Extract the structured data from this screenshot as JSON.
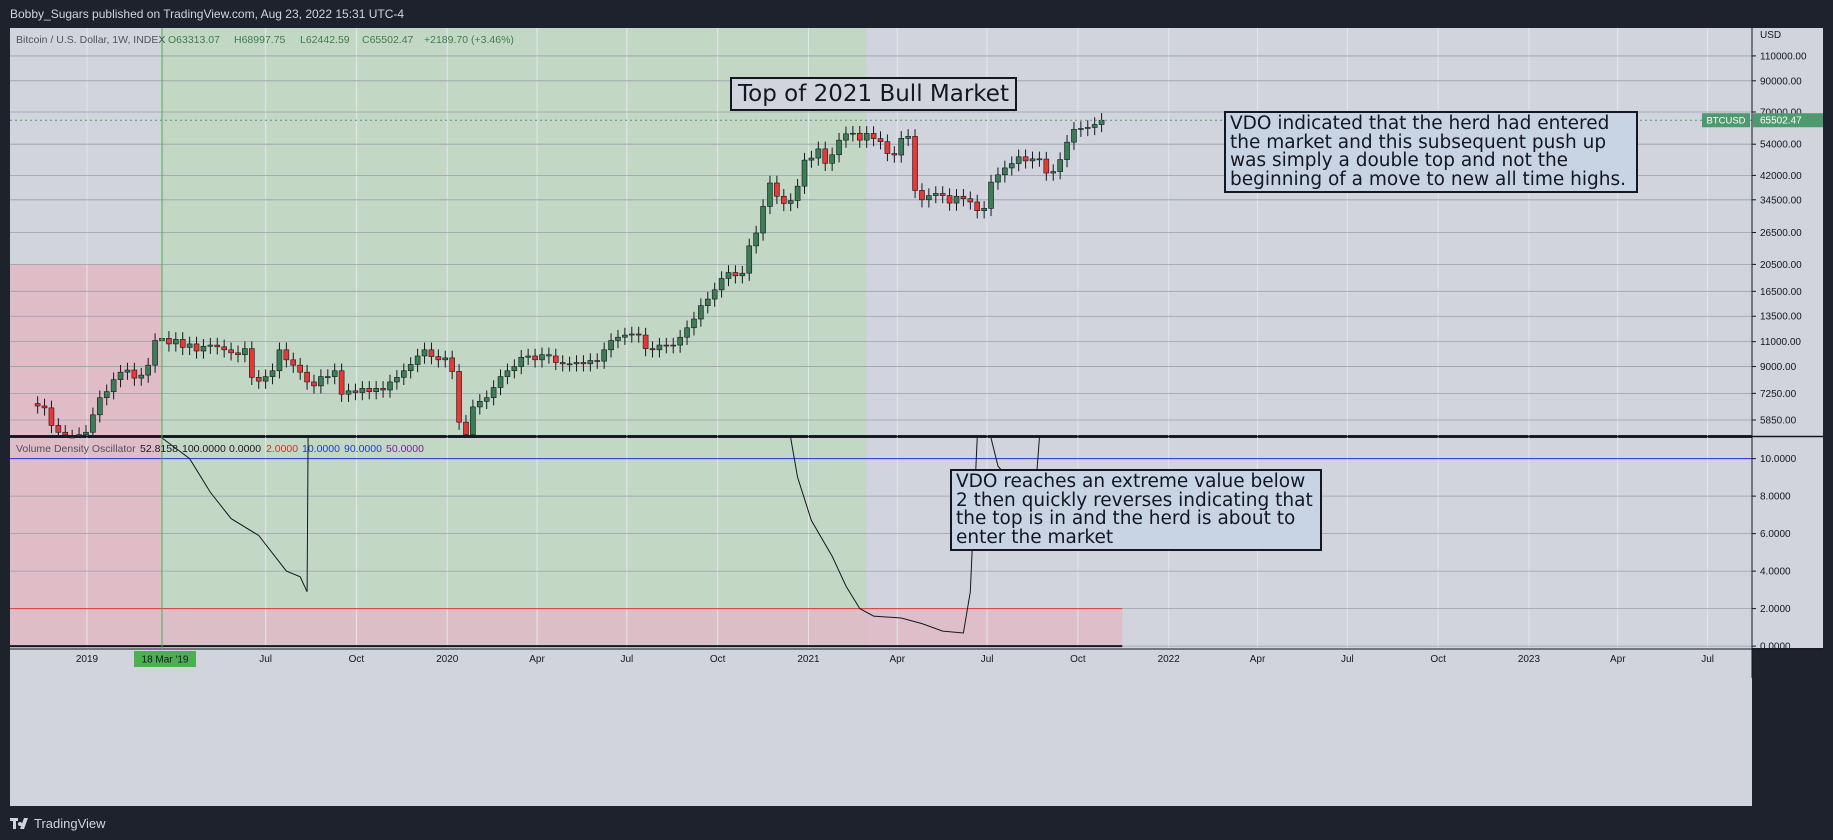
{
  "header": {
    "publisher_line": "Bobby_Sugars published on TradingView.com, Aug 23, 2022 15:31 UTC-4"
  },
  "footer": {
    "brand": "TradingView"
  },
  "colors": {
    "up": "#3d7d53",
    "down": "#e53935",
    "oscillator_line": "#131722",
    "threshold_line": "#1e3ad8",
    "green_zone": "#c3d8c4",
    "red_zone": "#dfbcc6",
    "price_tag": "#4e9a6e",
    "date_tag": "#4caf50"
  },
  "legend": {
    "symbol": "Bitcoin / U.S. Dollar, 1W, INDEX",
    "o": "O63313.07",
    "h": "H68997.75",
    "l": "L62442.59",
    "c": "C65502.47",
    "chg": "+2189.70 (+3.46%)"
  },
  "indicator": {
    "name": "Volume Density Oscillator",
    "values": [
      "52.8158",
      "100.0000",
      "0.0000",
      "2.0000",
      "10.0000",
      "90.0000",
      "50.0000"
    ],
    "value_colors": [
      "#131722",
      "#131722",
      "#131722",
      "#d32f2f",
      "#1e3ad8",
      "#1e3ad8",
      "#7b1fa2"
    ]
  },
  "annotations": {
    "top_title": "Top of 2021 Bull Market",
    "note_price": "VDO indicated that the herd had entered the market and this subsequent push up was simply a double top and not the beginning of a move to new all time highs.",
    "note_osc": "VDO reaches an extreme value below 2 then quickly reverses indicating that the top is in and the herd is about to enter the market"
  },
  "chart_data": [
    {
      "type": "candlestick",
      "pane": "price",
      "title": "Bitcoin / U.S. Dollar, 1W, INDEX",
      "scale": "log",
      "last_price_label": "BTCUSD",
      "last_price": 65502.47,
      "last_price_text": "65502.47",
      "y_ticks": [
        5850,
        7250,
        9000,
        11000,
        13500,
        16500,
        20500,
        26500,
        34500,
        42000,
        54000,
        70000,
        90000,
        110000
      ],
      "y_tick_labels": [
        "5850.00",
        "7250.00",
        "9000.00",
        "11000.00",
        "13500.00",
        "16500.00",
        "20500.00",
        "26500.00",
        "34500.00",
        "42000.00",
        "54000.00",
        "70000.00",
        "90000.00",
        "110000.00"
      ],
      "y_unit": "USD",
      "x_ticks": [
        "2019",
        "Jul",
        "Oct",
        "2020",
        "Apr",
        "Jul",
        "Oct",
        "2021",
        "Apr",
        "Jul",
        "Oct",
        "2022",
        "Apr",
        "Jul",
        "Oct",
        "2023",
        "Apr",
        "Jul"
      ],
      "x_tick_dates": [
        "2019-01-01",
        "2019-07-01",
        "2019-10-01",
        "2020-01-01",
        "2020-04-01",
        "2020-07-01",
        "2020-10-01",
        "2021-01-01",
        "2021-04-01",
        "2021-07-01",
        "2021-10-01",
        "2022-01-01",
        "2022-04-01",
        "2022-07-01",
        "2022-10-01",
        "2023-01-01",
        "2023-04-01",
        "2023-07-01"
      ],
      "x_range": [
        "2018-10-15",
        "2023-08-15"
      ],
      "crosshair_date_label": "18 Mar '19",
      "crosshair_date": "2019-03-18",
      "shaded_regions": [
        {
          "color": "red",
          "from": "2018-10-15",
          "to": "2019-03-18",
          "y_top": 20500
        },
        {
          "color": "green",
          "from": "2019-03-18",
          "to": "2021-03-01"
        }
      ],
      "closes": [
        6550,
        6450,
        5600,
        5300,
        5100,
        5050,
        5200,
        5300,
        6100,
        7000,
        7350,
        8100,
        8600,
        8750,
        8200,
        8400,
        9100,
        11100,
        11300,
        10800,
        11200,
        10500,
        10800,
        10200,
        10600,
        10700,
        10550,
        10300,
        10050,
        9900,
        10400,
        8250,
        8000,
        8300,
        8700,
        10300,
        9500,
        9100,
        8600,
        7950,
        7700,
        8300,
        8300,
        8700,
        7200,
        7400,
        7300,
        7550,
        7350,
        7550,
        7450,
        7950,
        8250,
        8700,
        9150,
        9800,
        10300,
        9750,
        9500,
        9650,
        8650,
        5750,
        5200,
        6500,
        6800,
        7000,
        7600,
        8300,
        8700,
        9000,
        9700,
        9800,
        9500,
        9900,
        9800,
        9300,
        9200,
        9200,
        9300,
        9200,
        9450,
        9400,
        10300,
        11100,
        11400,
        11600,
        11700,
        11600,
        10400,
        10300,
        10700,
        10650,
        10700,
        11400,
        12300,
        13200,
        14700,
        15500,
        16700,
        18300,
        19200,
        18700,
        19100,
        23800,
        26400,
        32700,
        39500,
        35500,
        33500,
        34300,
        38500,
        47500,
        48300,
        52000,
        46300,
        49600,
        55800,
        58700,
        59000,
        55800,
        58900,
        56500,
        55100,
        50100,
        49500,
        56600,
        57500,
        37200,
        34500,
        35700,
        36300,
        35700,
        33600,
        35500,
        34800,
        33900,
        31600,
        32200,
        39800,
        42200,
        44600,
        46200,
        48800,
        47200,
        48000,
        47900,
        42800,
        43300,
        47700,
        54900,
        60900,
        61300,
        61800,
        63313,
        65502
      ]
    },
    {
      "type": "line",
      "pane": "oscillator",
      "title": "Volume Density Oscillator",
      "y_ticks": [
        0,
        2,
        4,
        6,
        8,
        10
      ],
      "y_tick_labels": [
        "0.0000",
        "2.0000",
        "4.0000",
        "6.0000",
        "8.0000",
        "10.0000"
      ],
      "y_range": [
        -0.1,
        11.1
      ],
      "reference_lines": [
        {
          "value": 10,
          "color": "blue"
        },
        {
          "value": 2,
          "color": "red",
          "fill_below": true,
          "fill_until": "2021-11-15"
        }
      ],
      "series": [
        {
          "points": [
            [
              "2019-03-18",
              11.5
            ],
            [
              "2019-04-15",
              10.0
            ],
            [
              "2019-05-06",
              8.2
            ],
            [
              "2019-05-27",
              6.8
            ],
            [
              "2019-06-24",
              5.9
            ],
            [
              "2019-07-22",
              4.0
            ],
            [
              "2019-08-05",
              3.7
            ],
            [
              "2019-08-12",
              2.9
            ],
            [
              "2019-08-13",
              11.5
            ]
          ]
        },
        {
          "points": [
            [
              "2020-12-14",
              11.5
            ],
            [
              "2020-12-21",
              9.0
            ],
            [
              "2021-01-04",
              6.7
            ],
            [
              "2021-01-25",
              4.8
            ],
            [
              "2021-02-08",
              3.2
            ],
            [
              "2021-02-22",
              2.0
            ],
            [
              "2021-03-08",
              1.6
            ],
            [
              "2021-04-05",
              1.5
            ],
            [
              "2021-04-26",
              1.2
            ],
            [
              "2021-05-17",
              0.8
            ],
            [
              "2021-06-07",
              0.7
            ],
            [
              "2021-06-14",
              2.9
            ],
            [
              "2021-06-21",
              11.5
            ]
          ]
        },
        {
          "points": [
            [
              "2021-07-05",
              11.5
            ],
            [
              "2021-07-12",
              9.6
            ],
            [
              "2021-08-02",
              8.3
            ],
            [
              "2021-08-16",
              6.2
            ],
            [
              "2021-08-23",
              11.5
            ]
          ]
        }
      ],
      "last_value": 0
    }
  ]
}
